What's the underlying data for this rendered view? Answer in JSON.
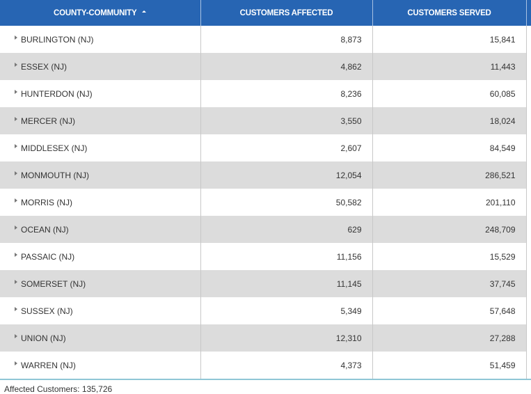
{
  "table": {
    "columns": [
      "COUNTY-COMMUNITY",
      "CUSTOMERS AFFECTED",
      "CUSTOMERS SERVED"
    ],
    "rows": [
      [
        "BURLINGTON (NJ)",
        "8,873",
        "15,841"
      ],
      [
        "ESSEX (NJ)",
        "4,862",
        "11,443"
      ],
      [
        "HUNTERDON (NJ)",
        "8,236",
        "60,085"
      ],
      [
        "MERCER (NJ)",
        "3,550",
        "18,024"
      ],
      [
        "MIDDLESEX (NJ)",
        "2,607",
        "84,549"
      ],
      [
        "MONMOUTH (NJ)",
        "12,054",
        "286,521"
      ],
      [
        "MORRIS (NJ)",
        "50,582",
        "201,110"
      ],
      [
        "OCEAN (NJ)",
        "629",
        "248,709"
      ],
      [
        "PASSAIC (NJ)",
        "11,156",
        "15,529"
      ],
      [
        "SOMERSET (NJ)",
        "11,145",
        "37,745"
      ],
      [
        "SUSSEX (NJ)",
        "5,349",
        "57,648"
      ],
      [
        "UNION (NJ)",
        "12,310",
        "27,288"
      ],
      [
        "WARREN (NJ)",
        "4,373",
        "51,459"
      ]
    ]
  },
  "footer": "Affected Customers: 135,726"
}
